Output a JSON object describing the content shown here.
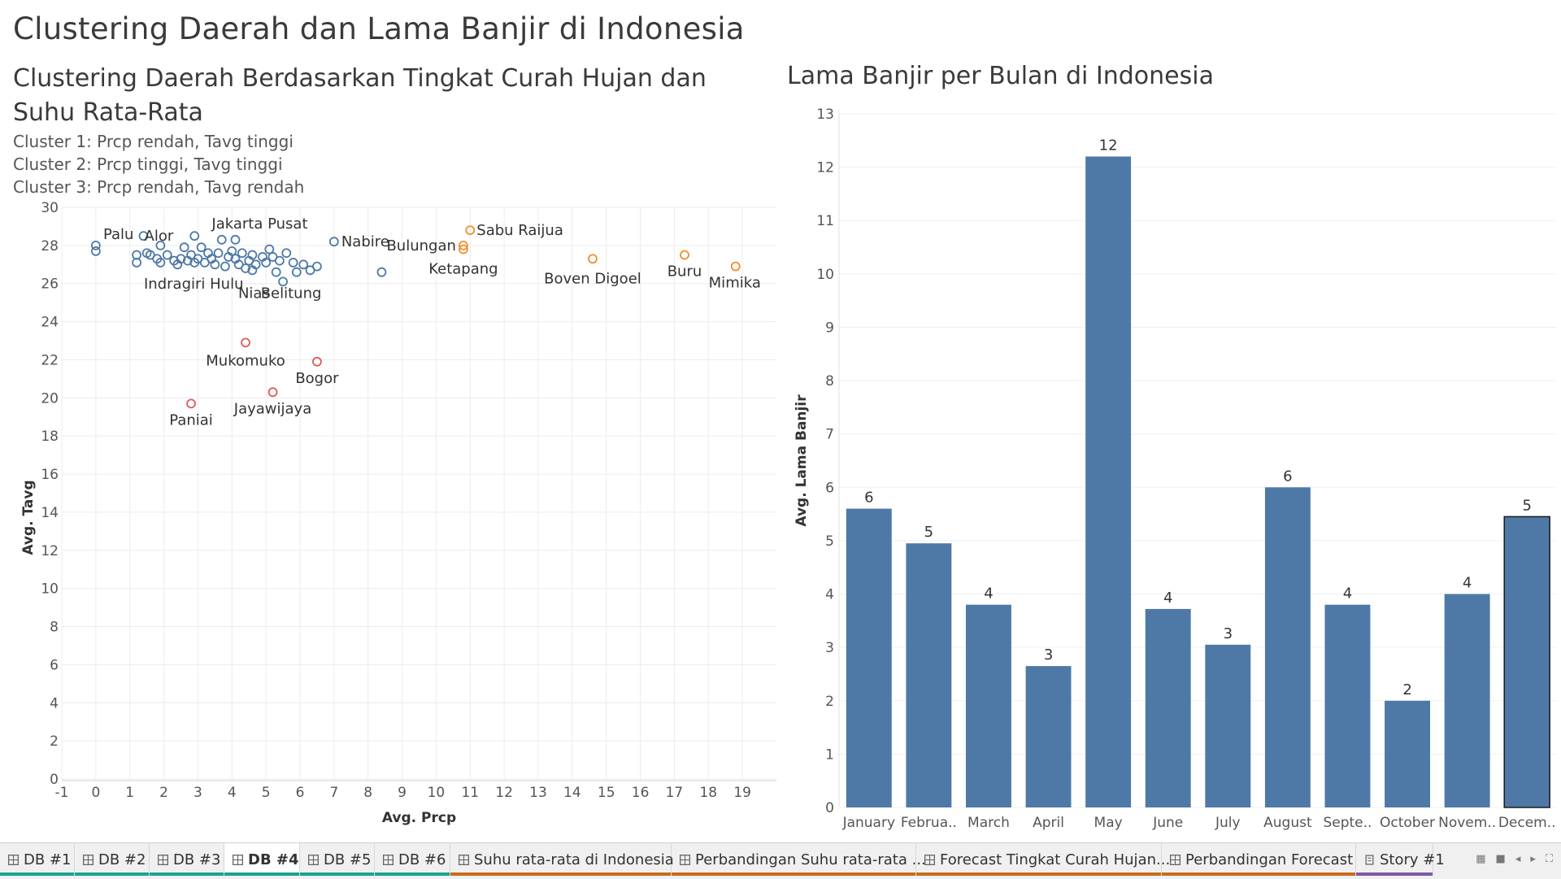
{
  "dashboard_title": "Clustering Daerah dan Lama Banjir di Indonesia",
  "left_title": "Clustering Daerah Berdasarkan Tingkat Curah Hujan dan Suhu Rata-Rata",
  "cluster_notes": [
    "Cluster 1: Prcp rendah, Tavg tinggi",
    "Cluster 2: Prcp tinggi, Tavg tinggi",
    "Cluster 3: Prcp rendah, Tavg rendah"
  ],
  "right_title": "Lama Banjir per Bulan di Indonesia",
  "colors": {
    "cluster1": "#4e79a7",
    "cluster2": "#f28e2b",
    "cluster3": "#e15759",
    "bar": "#4e79a7"
  },
  "chart_data": [
    {
      "type": "scatter",
      "xlabel": "Avg. Prcp",
      "ylabel": "Avg. Tavg",
      "xlim": [
        -1,
        20
      ],
      "ylim": [
        0,
        30
      ],
      "xticks": [
        -1,
        0,
        1,
        2,
        3,
        4,
        5,
        6,
        7,
        8,
        9,
        10,
        11,
        12,
        13,
        14,
        15,
        16,
        17,
        18,
        19
      ],
      "yticks": [
        0,
        2,
        4,
        6,
        8,
        10,
        12,
        14,
        16,
        18,
        20,
        22,
        24,
        26,
        28,
        30
      ],
      "labeled_points": [
        {
          "label": "Palu",
          "x": 1.4,
          "y": 28.5,
          "cluster": 1
        },
        {
          "label": "Alor",
          "x": 1.9,
          "y": 28.0,
          "cluster": 1
        },
        {
          "label": "Jakarta Pusat",
          "x": 4.1,
          "y": 28.3,
          "cluster": 1
        },
        {
          "label": "Indragiri Hulu",
          "x": 2.9,
          "y": 27.1,
          "cluster": 1
        },
        {
          "label": "Nias",
          "x": 4.6,
          "y": 26.7,
          "cluster": 1
        },
        {
          "label": "Belitung",
          "x": 5.5,
          "y": 26.1,
          "cluster": 1
        },
        {
          "label": "Nabire",
          "x": 7.0,
          "y": 28.2,
          "cluster": 1
        },
        {
          "label": "Bulungan",
          "x": 10.8,
          "y": 28.0,
          "cluster": 2
        },
        {
          "label": "Sabu Raijua",
          "x": 11.0,
          "y": 28.8,
          "cluster": 2
        },
        {
          "label": "Ketapang",
          "x": 10.8,
          "y": 27.8,
          "cluster": 2
        },
        {
          "label": "Boven Digoel",
          "x": 14.6,
          "y": 27.3,
          "cluster": 2
        },
        {
          "label": "Buru",
          "x": 17.3,
          "y": 27.5,
          "cluster": 2
        },
        {
          "label": "Mimika",
          "x": 18.8,
          "y": 26.9,
          "cluster": 2
        },
        {
          "label": "Mukomuko",
          "x": 4.4,
          "y": 22.9,
          "cluster": 3
        },
        {
          "label": "Bogor",
          "x": 6.5,
          "y": 21.9,
          "cluster": 3
        },
        {
          "label": "Jayawijaya",
          "x": 5.2,
          "y": 20.3,
          "cluster": 3
        },
        {
          "label": "Paniai",
          "x": 2.8,
          "y": 19.7,
          "cluster": 3
        }
      ],
      "points": [
        {
          "x": 0.0,
          "y": 28.0,
          "cluster": 1
        },
        {
          "x": 0.0,
          "y": 27.7,
          "cluster": 1
        },
        {
          "x": 1.2,
          "y": 27.5,
          "cluster": 1
        },
        {
          "x": 1.2,
          "y": 27.1,
          "cluster": 1
        },
        {
          "x": 1.5,
          "y": 27.6,
          "cluster": 1
        },
        {
          "x": 1.6,
          "y": 27.5,
          "cluster": 1
        },
        {
          "x": 1.8,
          "y": 27.3,
          "cluster": 1
        },
        {
          "x": 1.9,
          "y": 27.1,
          "cluster": 1
        },
        {
          "x": 2.1,
          "y": 27.5,
          "cluster": 1
        },
        {
          "x": 2.3,
          "y": 27.2,
          "cluster": 1
        },
        {
          "x": 2.4,
          "y": 27.0,
          "cluster": 1
        },
        {
          "x": 2.5,
          "y": 27.3,
          "cluster": 1
        },
        {
          "x": 2.6,
          "y": 27.9,
          "cluster": 1
        },
        {
          "x": 2.7,
          "y": 27.2,
          "cluster": 1
        },
        {
          "x": 2.8,
          "y": 27.5,
          "cluster": 1
        },
        {
          "x": 2.9,
          "y": 28.5,
          "cluster": 1
        },
        {
          "x": 3.0,
          "y": 27.3,
          "cluster": 1
        },
        {
          "x": 3.1,
          "y": 27.9,
          "cluster": 1
        },
        {
          "x": 3.2,
          "y": 27.1,
          "cluster": 1
        },
        {
          "x": 3.3,
          "y": 27.6,
          "cluster": 1
        },
        {
          "x": 3.4,
          "y": 27.3,
          "cluster": 1
        },
        {
          "x": 3.5,
          "y": 27.0,
          "cluster": 1
        },
        {
          "x": 3.6,
          "y": 27.6,
          "cluster": 1
        },
        {
          "x": 3.7,
          "y": 28.3,
          "cluster": 1
        },
        {
          "x": 3.8,
          "y": 26.9,
          "cluster": 1
        },
        {
          "x": 3.9,
          "y": 27.4,
          "cluster": 1
        },
        {
          "x": 4.0,
          "y": 27.7,
          "cluster": 1
        },
        {
          "x": 4.1,
          "y": 27.3,
          "cluster": 1
        },
        {
          "x": 4.2,
          "y": 27.0,
          "cluster": 1
        },
        {
          "x": 4.3,
          "y": 27.6,
          "cluster": 1
        },
        {
          "x": 4.4,
          "y": 26.8,
          "cluster": 1
        },
        {
          "x": 4.5,
          "y": 27.2,
          "cluster": 1
        },
        {
          "x": 4.6,
          "y": 27.5,
          "cluster": 1
        },
        {
          "x": 4.7,
          "y": 27.0,
          "cluster": 1
        },
        {
          "x": 4.9,
          "y": 27.4,
          "cluster": 1
        },
        {
          "x": 5.0,
          "y": 27.1,
          "cluster": 1
        },
        {
          "x": 5.1,
          "y": 27.8,
          "cluster": 1
        },
        {
          "x": 5.2,
          "y": 27.4,
          "cluster": 1
        },
        {
          "x": 5.3,
          "y": 26.6,
          "cluster": 1
        },
        {
          "x": 5.4,
          "y": 27.2,
          "cluster": 1
        },
        {
          "x": 5.6,
          "y": 27.6,
          "cluster": 1
        },
        {
          "x": 5.8,
          "y": 27.1,
          "cluster": 1
        },
        {
          "x": 5.9,
          "y": 26.6,
          "cluster": 1
        },
        {
          "x": 6.1,
          "y": 27.0,
          "cluster": 1
        },
        {
          "x": 6.3,
          "y": 26.7,
          "cluster": 1
        },
        {
          "x": 6.5,
          "y": 26.9,
          "cluster": 1
        },
        {
          "x": 8.4,
          "y": 26.6,
          "cluster": 1
        }
      ]
    },
    {
      "type": "bar",
      "xlabel": "",
      "ylabel": "Avg. Lama Banjir",
      "ylim": [
        0,
        13
      ],
      "yticks": [
        0,
        1,
        2,
        3,
        4,
        5,
        6,
        7,
        8,
        9,
        10,
        11,
        12,
        13
      ],
      "categories": [
        "January",
        "Februa..",
        "March",
        "April",
        "May",
        "June",
        "July",
        "August",
        "Septe..",
        "October",
        "Novem..",
        "Decem.."
      ],
      "values": [
        5.6,
        4.95,
        3.8,
        2.65,
        12.2,
        3.72,
        3.05,
        6.0,
        3.8,
        2.0,
        4.0,
        5.45
      ],
      "data_labels": [
        "6",
        "5",
        "4",
        "3",
        "12",
        "4",
        "3",
        "6",
        "4",
        "2",
        "4",
        "5"
      ]
    }
  ],
  "tabs": [
    {
      "label": "DB #1",
      "type": "dashboard",
      "active": false,
      "stripe": "#17a589"
    },
    {
      "label": "DB #2",
      "type": "dashboard",
      "active": false,
      "stripe": "#17a589"
    },
    {
      "label": "DB #3",
      "type": "dashboard",
      "active": false,
      "stripe": "#17a589"
    },
    {
      "label": "DB #4",
      "type": "dashboard",
      "active": true,
      "stripe": "#17a589"
    },
    {
      "label": "DB #5",
      "type": "dashboard",
      "active": false,
      "stripe": "#17a589"
    },
    {
      "label": "DB #6",
      "type": "dashboard",
      "active": false,
      "stripe": "#17a589"
    },
    {
      "label": "Suhu rata-rata di Indonesia",
      "type": "dashboard",
      "active": false,
      "stripe": "#c96a1b"
    },
    {
      "label": "Perbandingan Suhu rata-rata ...",
      "type": "dashboard",
      "active": false,
      "stripe": "#c96a1b"
    },
    {
      "label": "Forecast Tingkat Curah Hujan...",
      "type": "dashboard",
      "active": false,
      "stripe": "#c96a1b"
    },
    {
      "label": "Perbandingan Forecast",
      "type": "dashboard",
      "active": false,
      "stripe": "#c96a1b"
    },
    {
      "label": "Story #1",
      "type": "story",
      "active": false,
      "stripe": "#7d5ba6"
    }
  ],
  "nav_icons": [
    "grid-view-icon",
    "filmstrip-icon",
    "previous-tab-icon",
    "next-tab-icon",
    "show-all-tabs-icon"
  ]
}
